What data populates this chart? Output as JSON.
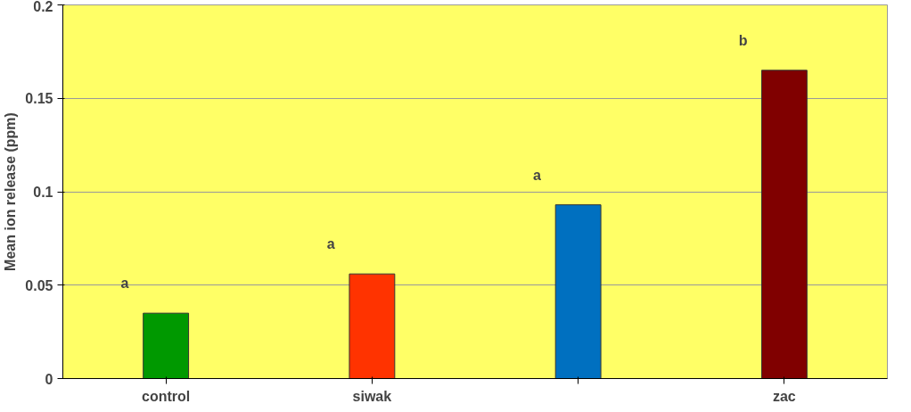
{
  "chart_data": {
    "type": "bar",
    "ylabel": "Mean ion release (ppm)",
    "categories": [
      "control",
      "siwak",
      null,
      "zac"
    ],
    "values": [
      0.035,
      0.056,
      0.093,
      0.165
    ],
    "colors": [
      "#009900",
      "#ff3300",
      "#0070c0",
      "#800000"
    ],
    "ylim": [
      0,
      0.2
    ],
    "yticks": [
      0,
      0.05,
      0.1,
      0.15,
      0.2
    ],
    "grid": "y",
    "annotations": [
      "a",
      "a",
      "a",
      "b"
    ]
  }
}
